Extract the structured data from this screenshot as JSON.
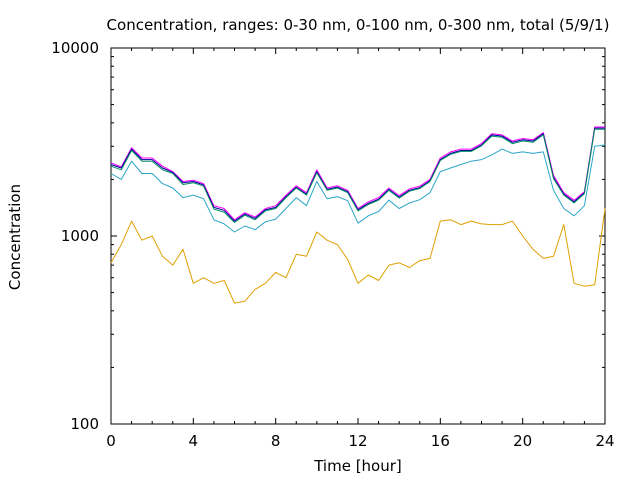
{
  "chart_data": {
    "type": "line",
    "title": "Concentration, ranges: 0-30 nm, 0-100 nm, 0-300 nm, total (5/9/1)",
    "xlabel": "Time [hour]",
    "ylabel": "Concentration",
    "y_scale": "log",
    "xlim": [
      0,
      24
    ],
    "ylim": [
      100,
      10000
    ],
    "xticks": [
      0,
      4,
      8,
      12,
      16,
      20,
      24
    ],
    "yticks": [
      100,
      1000,
      10000
    ],
    "grid": false,
    "legend": "none",
    "x": [
      0,
      0.5,
      1,
      1.5,
      2,
      2.5,
      3,
      3.5,
      4,
      4.5,
      5,
      5.5,
      6,
      6.5,
      7,
      7.5,
      8,
      8.5,
      9,
      9.5,
      10,
      10.5,
      11,
      11.5,
      12,
      12.5,
      13,
      13.5,
      14,
      14.5,
      15,
      15.5,
      16,
      16.5,
      17,
      17.5,
      18,
      18.5,
      19,
      19.5,
      20,
      20.5,
      21,
      21.5,
      22,
      22.5,
      23,
      23.5,
      24
    ],
    "series": [
      {
        "color": "#ff00ff",
        "values": [
          2450,
          2330,
          2950,
          2600,
          2600,
          2350,
          2200,
          1950,
          1980,
          1900,
          1450,
          1400,
          1220,
          1330,
          1260,
          1400,
          1450,
          1650,
          1850,
          1700,
          2250,
          1800,
          1850,
          1750,
          1400,
          1520,
          1600,
          1800,
          1640,
          1780,
          1840,
          2000,
          2600,
          2800,
          2900,
          2900,
          3100,
          3500,
          3450,
          3200,
          3300,
          3250,
          3550,
          2100,
          1700,
          1550,
          1720,
          3800,
          3800
        ]
      },
      {
        "color": "#0000a0",
        "values": [
          2400,
          2300,
          2900,
          2550,
          2550,
          2300,
          2180,
          1920,
          1950,
          1870,
          1420,
          1370,
          1200,
          1310,
          1240,
          1380,
          1420,
          1620,
          1820,
          1670,
          2200,
          1770,
          1820,
          1720,
          1380,
          1490,
          1570,
          1770,
          1610,
          1750,
          1810,
          1970,
          2550,
          2750,
          2850,
          2850,
          3050,
          3450,
          3400,
          3150,
          3250,
          3200,
          3500,
          2050,
          1670,
          1520,
          1700,
          3750,
          3750
        ]
      },
      {
        "color": "#009060",
        "values": [
          2350,
          2250,
          2850,
          2500,
          2500,
          2250,
          2150,
          1880,
          1920,
          1840,
          1390,
          1340,
          1180,
          1290,
          1220,
          1360,
          1400,
          1600,
          1800,
          1650,
          2170,
          1750,
          1800,
          1700,
          1360,
          1470,
          1550,
          1750,
          1590,
          1730,
          1790,
          1950,
          2520,
          2720,
          2820,
          2820,
          3020,
          3400,
          3350,
          3100,
          3200,
          3150,
          3450,
          2020,
          1650,
          1500,
          1680,
          3700,
          3700
        ]
      },
      {
        "color": "#2aa6c8",
        "values": [
          2150,
          2000,
          2500,
          2150,
          2150,
          1900,
          1800,
          1600,
          1650,
          1580,
          1220,
          1160,
          1050,
          1130,
          1080,
          1190,
          1230,
          1400,
          1600,
          1450,
          1950,
          1580,
          1620,
          1540,
          1170,
          1280,
          1350,
          1550,
          1400,
          1500,
          1560,
          1700,
          2200,
          2300,
          2400,
          2500,
          2550,
          2700,
          2900,
          2750,
          2800,
          2750,
          2800,
          1750,
          1400,
          1280,
          1450,
          3000,
          3050
        ]
      },
      {
        "color": "#e0a000",
        "values": [
          720,
          900,
          1200,
          950,
          1000,
          780,
          700,
          850,
          560,
          600,
          560,
          580,
          440,
          450,
          520,
          560,
          640,
          600,
          800,
          780,
          1050,
          950,
          900,
          750,
          560,
          620,
          580,
          700,
          720,
          680,
          740,
          760,
          1200,
          1220,
          1150,
          1200,
          1160,
          1150,
          1150,
          1200,
          1000,
          850,
          760,
          780,
          1150,
          560,
          540,
          550,
          1400
        ]
      }
    ]
  }
}
